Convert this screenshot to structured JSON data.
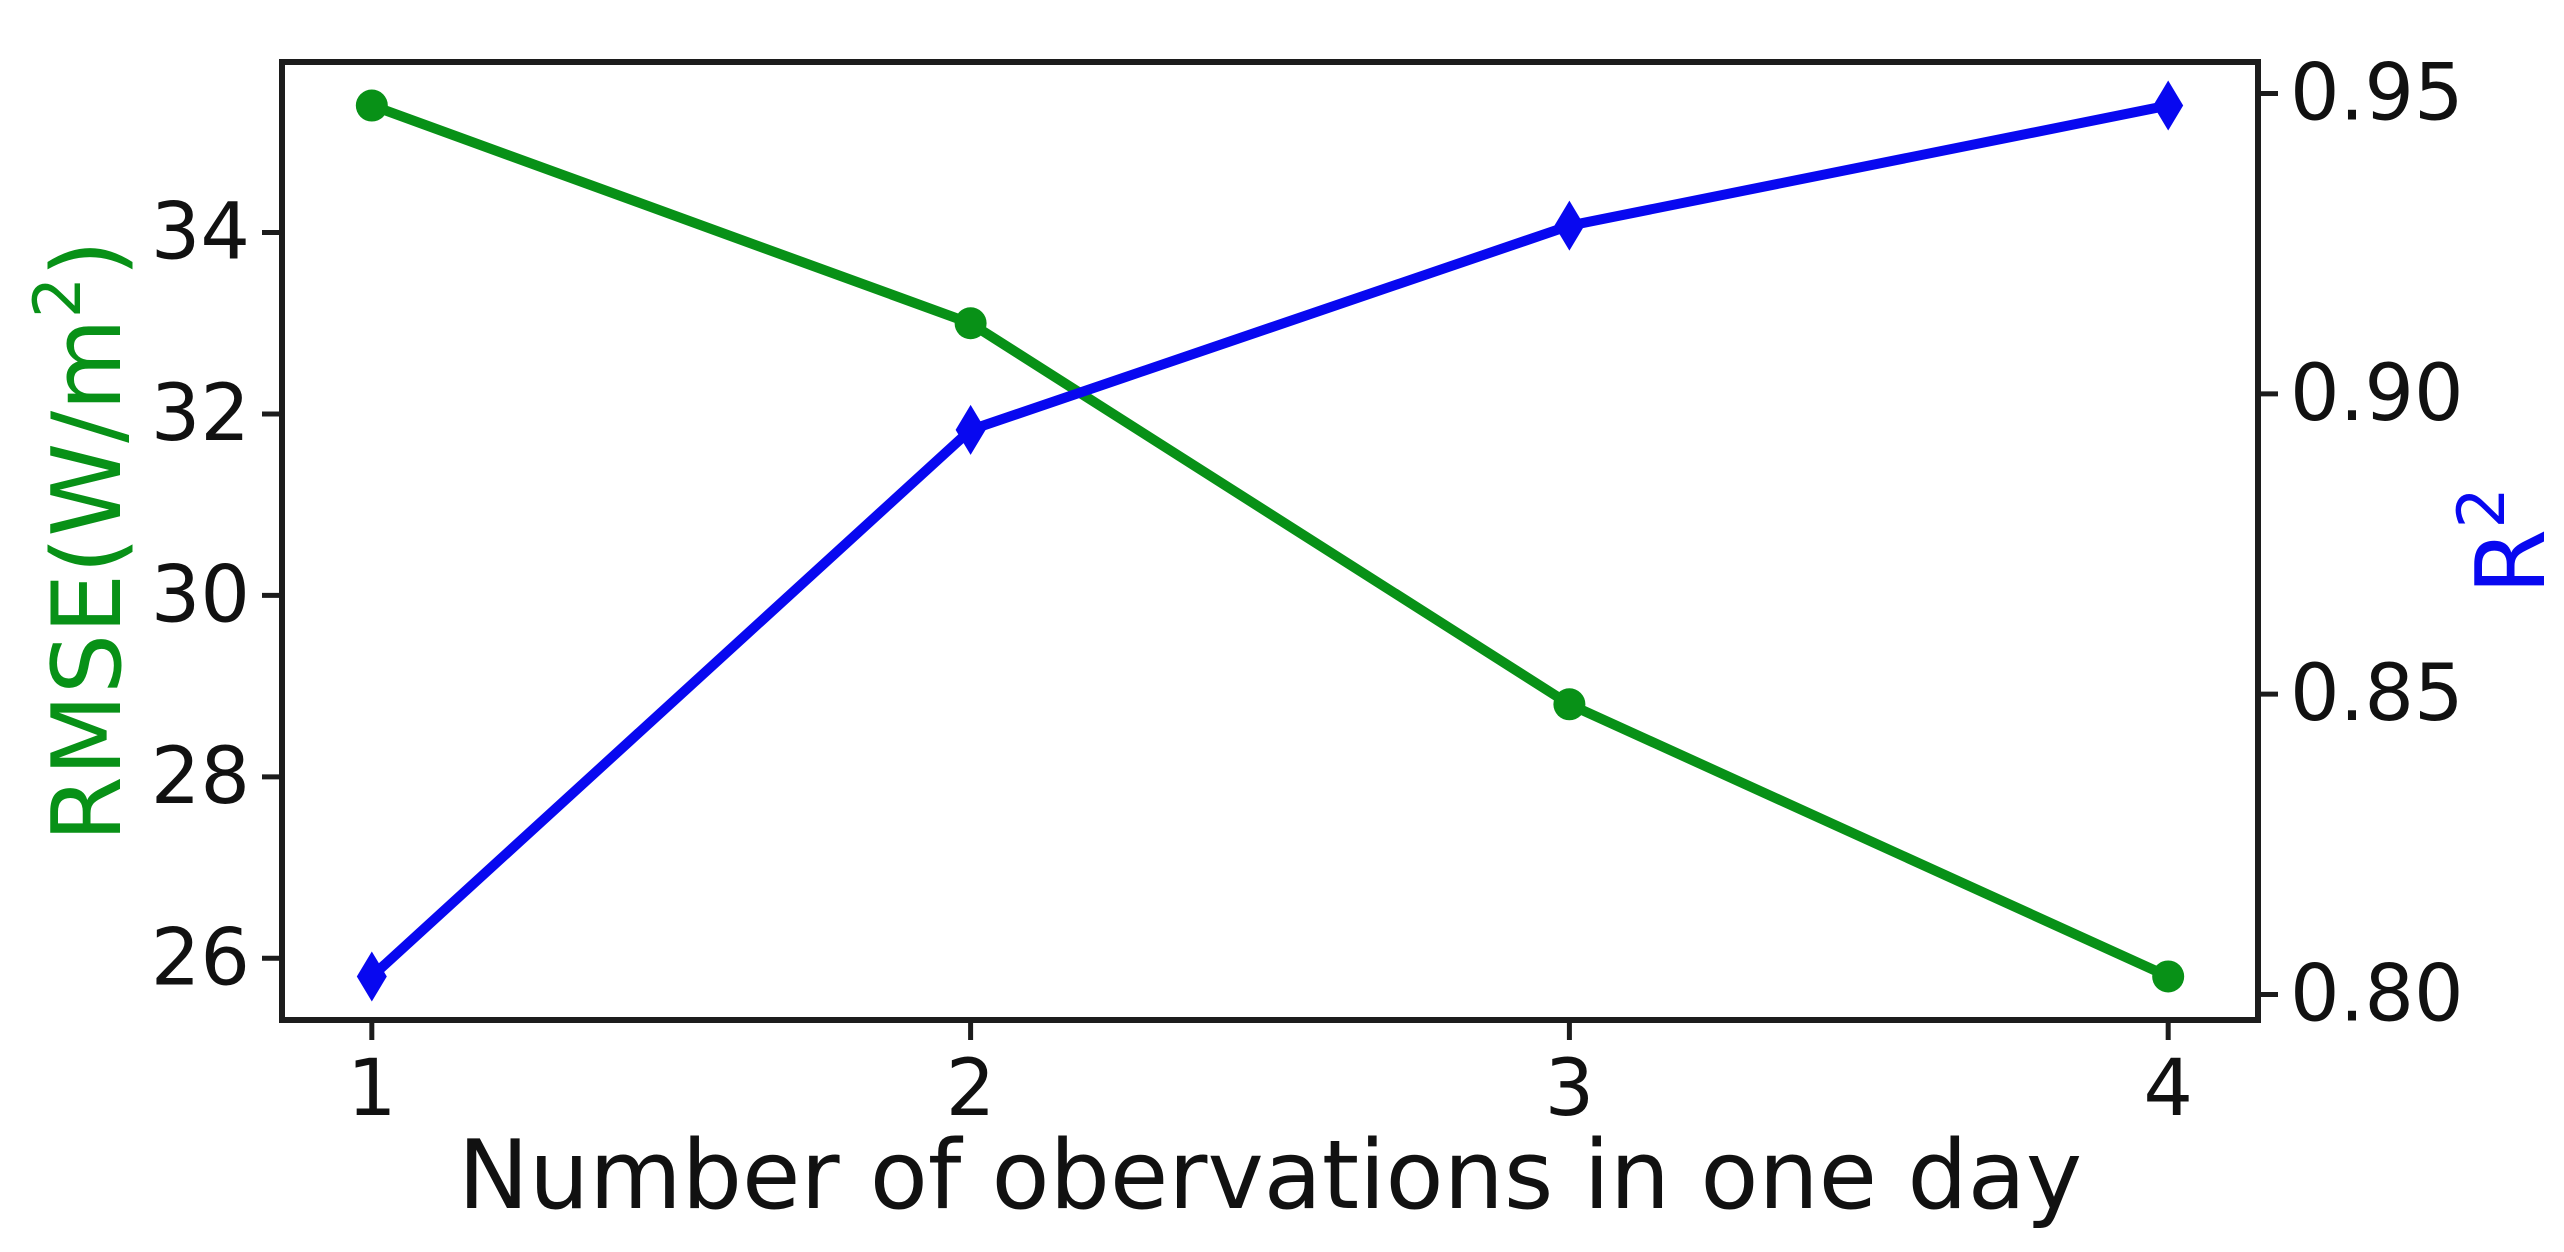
{
  "chart_data": {
    "type": "line",
    "x": [
      1,
      2,
      3,
      4
    ],
    "categories": [
      "1",
      "2",
      "3",
      "4"
    ],
    "series": [
      {
        "name": "RMSE",
        "axis": "left",
        "color": "#089117",
        "marker": "circle",
        "values": [
          35.4,
          33.0,
          28.8,
          25.8
        ]
      },
      {
        "name": "R2",
        "axis": "right",
        "color": "#0808f0",
        "marker": "thin-diamond",
        "values": [
          0.803,
          0.894,
          0.928,
          0.948
        ]
      }
    ],
    "title": "",
    "xlabel": "Number of obervations in one day",
    "ylabel_left": {
      "parts": [
        "RMSE(W/m",
        "2",
        ")"
      ],
      "sup_index": 1,
      "color": "#089117"
    },
    "ylabel_right": {
      "parts": [
        "R",
        "2"
      ],
      "sup_index": 1,
      "color": "#0808f0"
    },
    "x_ticks": [
      1,
      2,
      3,
      4
    ],
    "x_tick_labels": [
      "1",
      "2",
      "3",
      "4"
    ],
    "left_ticks": [
      26,
      28,
      30,
      32,
      34
    ],
    "left_tick_labels": [
      "26",
      "28",
      "30",
      "32",
      "34"
    ],
    "right_ticks": [
      0.8,
      0.85,
      0.9,
      0.95
    ],
    "right_tick_labels": [
      "0.80",
      "0.85",
      "0.90",
      "0.95"
    ],
    "xlim": [
      0.85,
      4.15
    ],
    "ylim_left": [
      25.32,
      35.88
    ],
    "ylim_right": [
      0.79575,
      0.95525
    ],
    "grid": false,
    "legend_position": "none",
    "axis_color": "#1c1c1c",
    "tick_label_color": "#111111",
    "background_color": "#ffffff"
  }
}
